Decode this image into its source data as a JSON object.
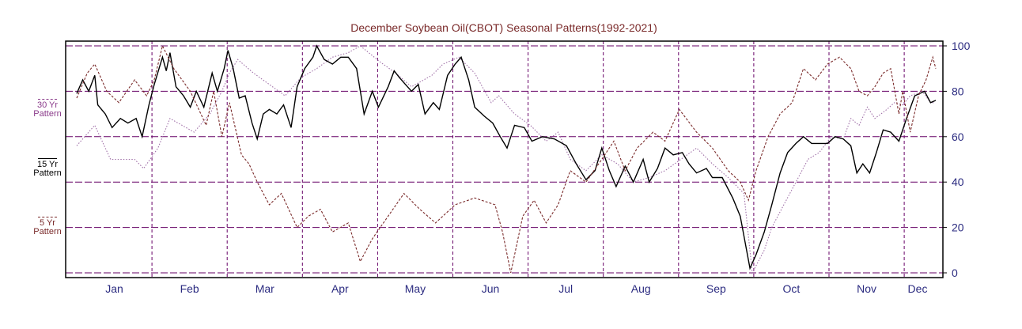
{
  "chart_data": {
    "type": "line",
    "title": "December Soybean Oil(CBOT) Seasonal Patterns(1992-2021)",
    "xlabel": "",
    "ylabel": "",
    "ylim": [
      0,
      100
    ],
    "yticks": [
      "0",
      "20",
      "40",
      "60",
      "80",
      "100"
    ],
    "xlim_months": [
      0,
      11.6
    ],
    "months": [
      "Jan",
      "Feb",
      "Mar",
      "Apr",
      "May",
      "Jun",
      "Jul",
      "Aug",
      "Sep",
      "Oct",
      "Nov",
      "Dec"
    ],
    "grid": true,
    "legend_placement": "left",
    "colors": {
      "title": "#7a2a2a",
      "axis_text": "#2b2b80",
      "grid": "#660066",
      "s30": "#a070a8",
      "s15": "#000000",
      "s5": "#7a2a2a"
    },
    "series": [
      {
        "key": "s30",
        "name": "30 Yr Pattern",
        "style": "dotted",
        "x": [
          0,
          0.24,
          0.45,
          0.77,
          0.89,
          1.08,
          1.24,
          1.4,
          1.56,
          1.77,
          1.93,
          2.03,
          2.14,
          2.35,
          2.56,
          2.77,
          2.98,
          3.19,
          3.4,
          3.61,
          3.77,
          4.03,
          4.24,
          4.45,
          4.72,
          4.87,
          5.08,
          5.29,
          5.51,
          5.61,
          5.82,
          6.03,
          6.24,
          6.4,
          6.56,
          6.77,
          6.98,
          7.19,
          7.4,
          7.61,
          7.82,
          8.03,
          8.24,
          8.45,
          8.66,
          8.87,
          8.98,
          9.14,
          9.24,
          9.4,
          9.56,
          9.72,
          9.87,
          10.03,
          10.19,
          10.29,
          10.4,
          10.51,
          10.61,
          10.77,
          10.87,
          10.98,
          11.08,
          11.24,
          11.35,
          11.4
        ],
        "y": [
          56,
          65,
          50,
          50,
          46,
          55,
          68,
          65,
          62,
          70,
          80,
          88,
          94,
          88,
          83,
          78,
          86,
          90,
          95,
          97,
          100,
          93,
          88,
          82,
          87,
          92,
          95,
          88,
          75,
          78,
          70,
          65,
          58,
          62,
          50,
          45,
          52,
          48,
          40,
          42,
          45,
          50,
          55,
          48,
          42,
          35,
          0,
          10,
          20,
          30,
          40,
          50,
          53,
          60,
          59,
          68,
          65,
          73,
          68,
          72,
          75,
          74,
          78,
          80,
          75,
          75
        ]
      },
      {
        "key": "s15",
        "name": "15 Yr Pattern",
        "style": "solid",
        "x": [
          0,
          0.08,
          0.16,
          0.24,
          0.28,
          0.38,
          0.47,
          0.58,
          0.68,
          0.79,
          0.87,
          0.96,
          1.03,
          1.14,
          1.19,
          1.24,
          1.32,
          1.42,
          1.51,
          1.59,
          1.69,
          1.8,
          1.87,
          1.96,
          2.01,
          2.08,
          2.16,
          2.24,
          2.33,
          2.4,
          2.48,
          2.56,
          2.66,
          2.75,
          2.85,
          2.93,
          3.03,
          3.14,
          3.19,
          3.29,
          3.4,
          3.51,
          3.61,
          3.72,
          3.82,
          3.93,
          4.01,
          4.14,
          4.22,
          4.29,
          4.37,
          4.45,
          4.54,
          4.63,
          4.74,
          4.82,
          4.93,
          5.03,
          5.11,
          5.21,
          5.29,
          5.42,
          5.53,
          5.63,
          5.72,
          5.82,
          5.95,
          6.05,
          6.19,
          6.35,
          6.51,
          6.64,
          6.77,
          6.89,
          6.98,
          7.08,
          7.17,
          7.29,
          7.4,
          7.53,
          7.61,
          7.72,
          7.82,
          7.93,
          8.05,
          8.14,
          8.24,
          8.37,
          8.45,
          8.58,
          8.72,
          8.82,
          8.95,
          9.03,
          9.14,
          9.24,
          9.35,
          9.45,
          9.56,
          9.66,
          9.77,
          9.87,
          9.98,
          10.08,
          10.19,
          10.29,
          10.37,
          10.45,
          10.54,
          10.63,
          10.72,
          10.82,
          10.93,
          11.03,
          11.14,
          11.27,
          11.35,
          11.42
        ],
        "y": [
          79,
          85,
          80,
          87,
          74,
          70,
          64,
          68,
          66,
          68,
          60,
          74,
          83,
          95,
          89,
          97,
          82,
          78,
          73,
          80,
          73,
          88,
          80,
          90,
          98,
          90,
          77,
          78,
          66,
          59,
          70,
          72,
          70,
          74,
          64,
          82,
          90,
          95,
          100,
          94,
          92,
          95,
          95,
          90,
          70,
          80,
          73,
          82,
          89,
          86,
          83,
          80,
          83,
          70,
          75,
          72,
          87,
          92,
          95,
          85,
          73,
          69,
          66,
          60,
          55,
          65,
          64,
          58,
          60,
          59,
          56,
          48,
          41,
          45,
          55,
          45,
          38,
          47,
          40,
          50,
          40,
          46,
          55,
          52,
          53,
          48,
          44,
          46,
          42,
          42,
          33,
          25,
          2,
          8,
          18,
          30,
          44,
          53,
          57,
          60,
          57,
          57,
          57,
          60,
          59,
          56,
          44,
          48,
          44,
          53,
          63,
          62,
          58,
          68,
          78,
          80,
          75,
          76
        ]
      },
      {
        "key": "s5",
        "name": "5 Yr Pattern",
        "style": "dashed",
        "x": [
          0,
          0.14,
          0.24,
          0.4,
          0.56,
          0.77,
          0.93,
          1.03,
          1.14,
          1.29,
          1.51,
          1.72,
          1.82,
          1.93,
          2.03,
          2.19,
          2.29,
          2.4,
          2.56,
          2.72,
          2.93,
          3.08,
          3.24,
          3.4,
          3.61,
          3.77,
          3.93,
          4.14,
          4.35,
          4.56,
          4.77,
          5.03,
          5.29,
          5.56,
          5.66,
          5.77,
          5.93,
          6.08,
          6.24,
          6.4,
          6.56,
          6.77,
          6.98,
          7.14,
          7.29,
          7.45,
          7.66,
          7.82,
          8.01,
          8.24,
          8.45,
          8.66,
          8.82,
          8.93,
          9.03,
          9.19,
          9.35,
          9.51,
          9.66,
          9.82,
          9.98,
          10.14,
          10.29,
          10.4,
          10.51,
          10.61,
          10.72,
          10.82,
          10.93,
          10.98,
          11.08,
          11.19,
          11.29,
          11.38,
          11.42
        ],
        "y": [
          77,
          88,
          92,
          80,
          75,
          85,
          78,
          85,
          100,
          90,
          80,
          65,
          80,
          60,
          75,
          52,
          48,
          40,
          30,
          35,
          20,
          25,
          28,
          18,
          22,
          5,
          15,
          25,
          35,
          28,
          22,
          30,
          33,
          30,
          18,
          0,
          25,
          32,
          22,
          30,
          45,
          40,
          50,
          58,
          45,
          55,
          62,
          58,
          72,
          62,
          55,
          45,
          40,
          32,
          45,
          60,
          70,
          75,
          90,
          85,
          92,
          95,
          90,
          80,
          78,
          82,
          88,
          90,
          70,
          80,
          62,
          78,
          85,
          95,
          90
        ]
      }
    ]
  },
  "legend": {
    "s30": [
      "30 Yr",
      "Pattern"
    ],
    "s15": [
      "15 Yr",
      "Pattern"
    ],
    "s5": [
      "5 Yr",
      "Pattern"
    ]
  }
}
